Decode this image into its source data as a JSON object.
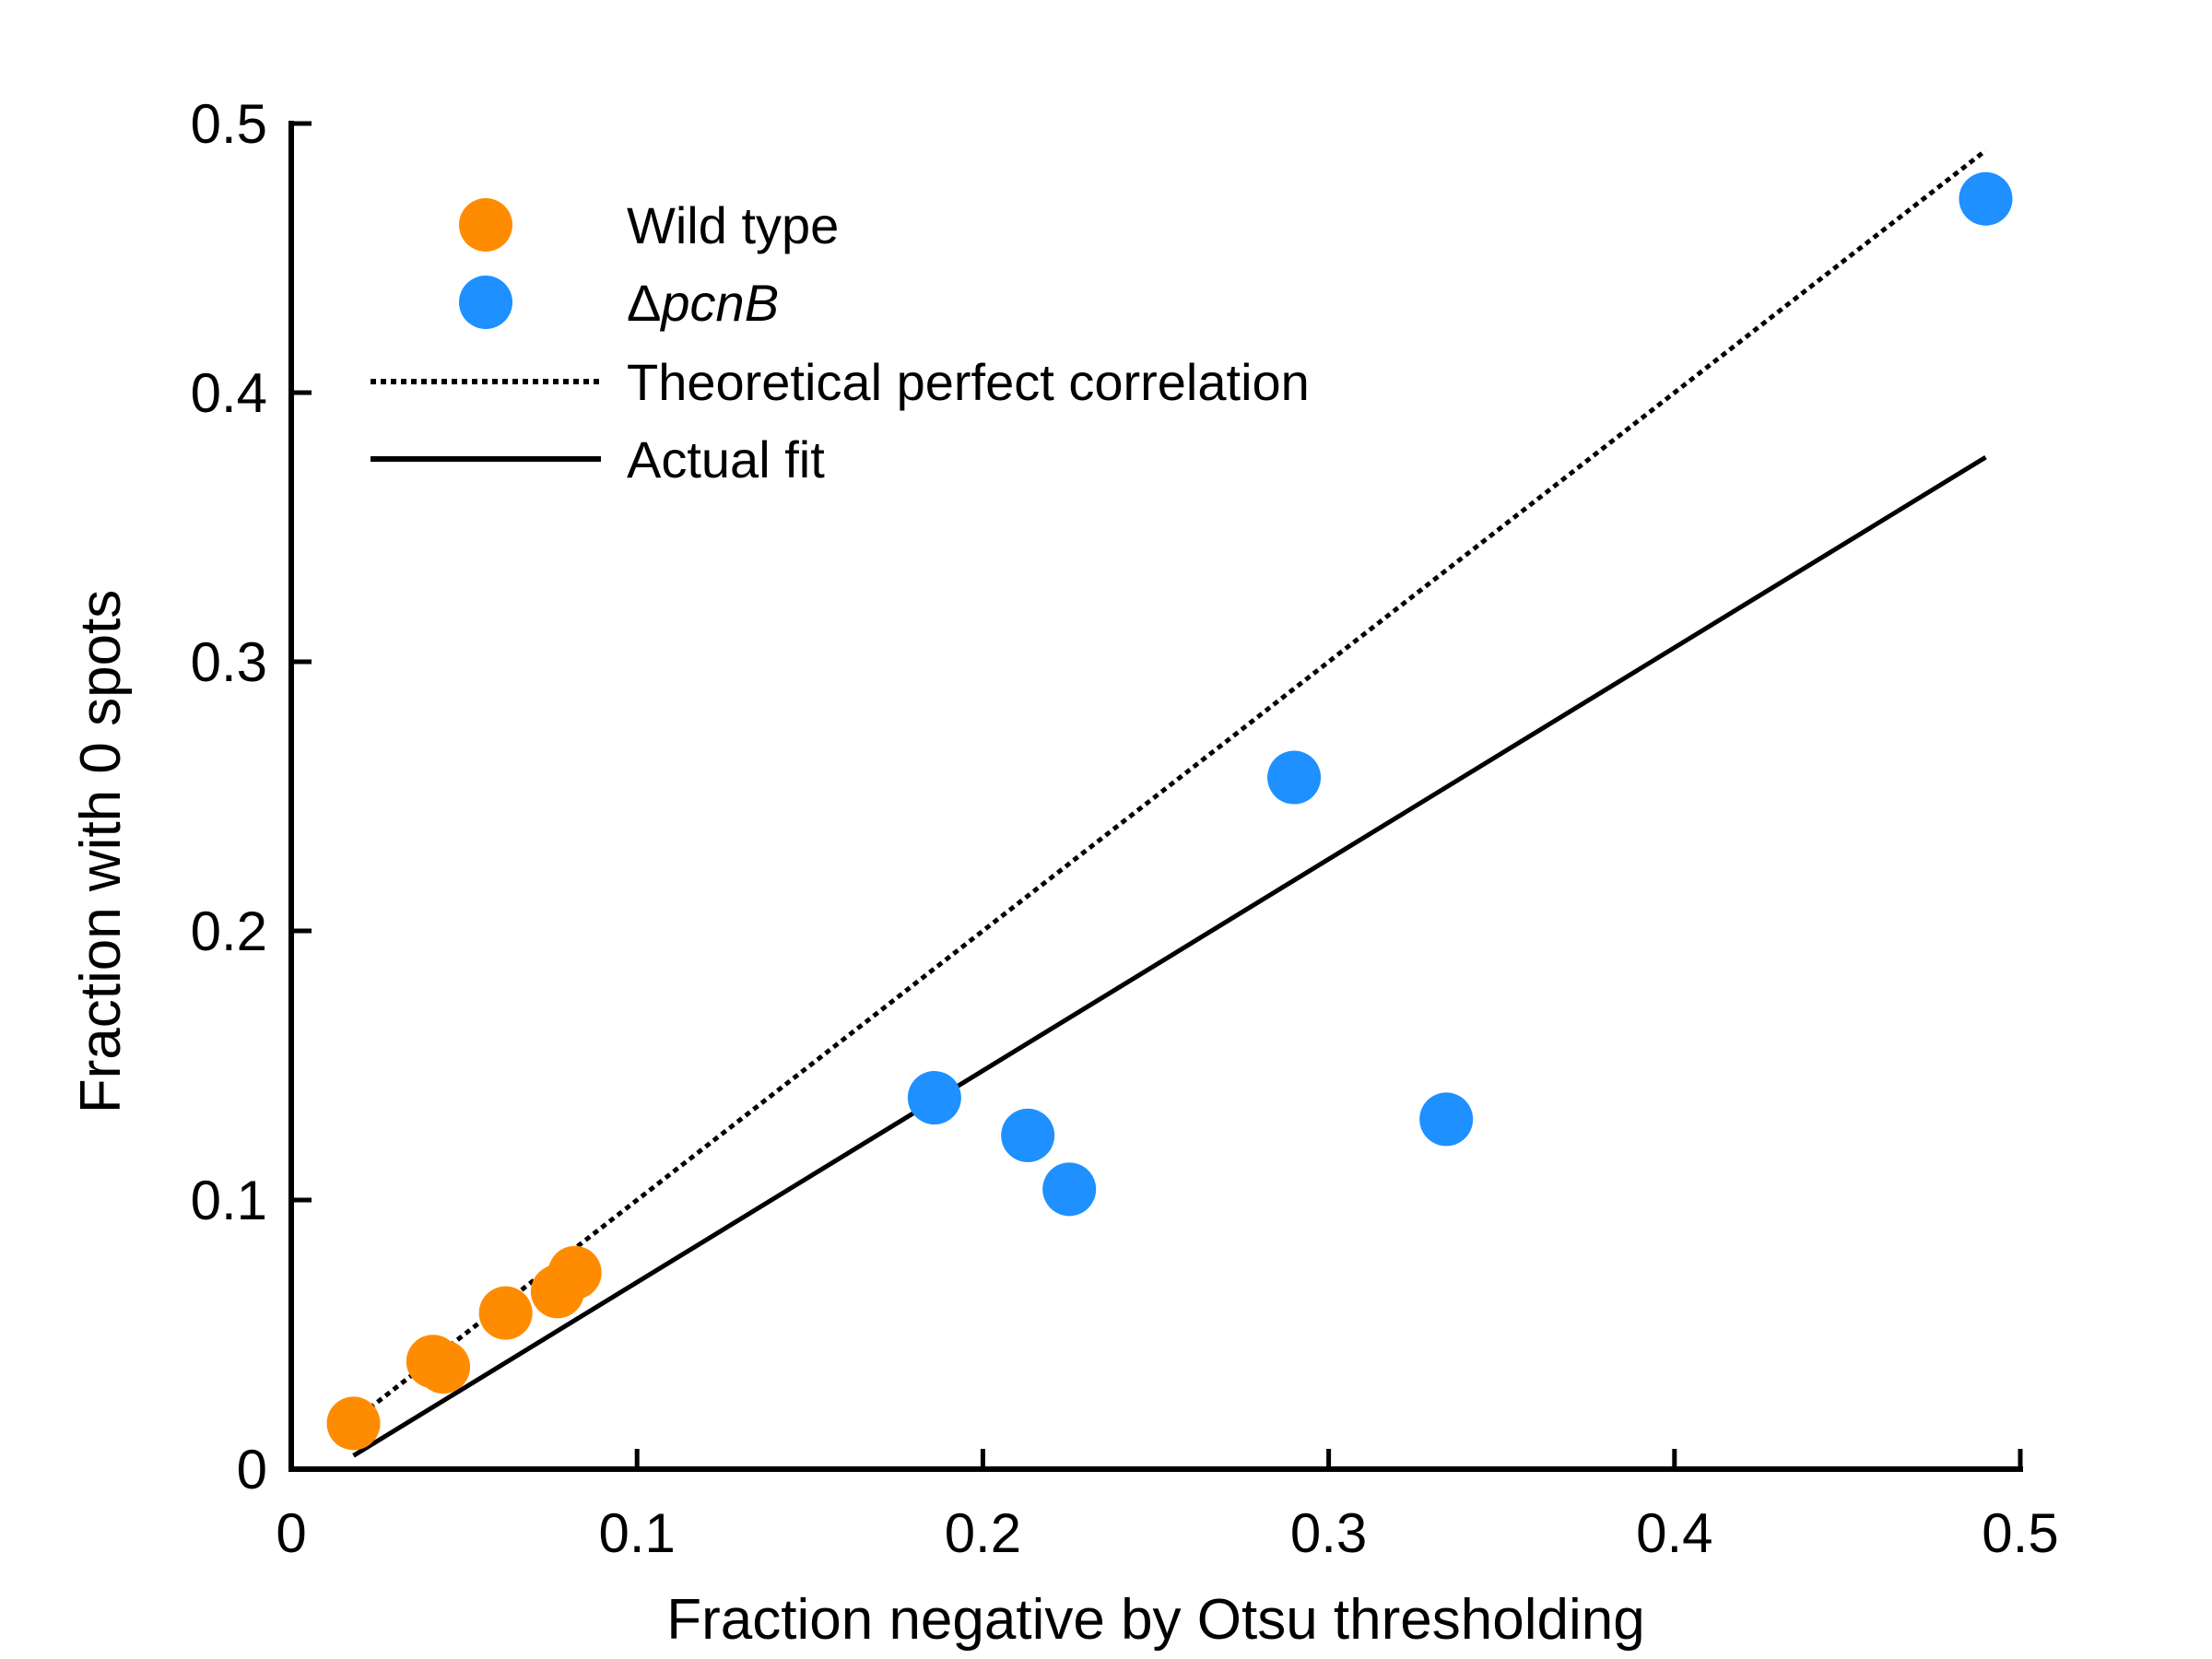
{
  "chart_data": {
    "type": "scatter",
    "title": "",
    "xlabel": "Fraction negative by Otsu thresholding",
    "ylabel": "Fraction with 0 spots",
    "xlim": [
      0,
      0.5
    ],
    "ylim": [
      0,
      0.5
    ],
    "xticks": [
      0,
      0.1,
      0.2,
      0.3,
      0.4,
      0.5
    ],
    "yticks": [
      0,
      0.1,
      0.2,
      0.3,
      0.4,
      0.5
    ],
    "xtick_labels": [
      "0",
      "0.1",
      "0.2",
      "0.3",
      "0.4",
      "0.5"
    ],
    "ytick_labels": [
      "0",
      "0.1",
      "0.2",
      "0.3",
      "0.4",
      "0.5"
    ],
    "grid": false,
    "legend_position": "top-left",
    "series": [
      {
        "name": "Wild type",
        "kind": "scatter",
        "color": "#FF8C00",
        "points": [
          {
            "x": 0.018,
            "y": 0.017
          },
          {
            "x": 0.041,
            "y": 0.04
          },
          {
            "x": 0.044,
            "y": 0.038
          },
          {
            "x": 0.062,
            "y": 0.058
          },
          {
            "x": 0.077,
            "y": 0.066
          },
          {
            "x": 0.082,
            "y": 0.073
          }
        ]
      },
      {
        "name": "ΔpcnB",
        "name_prefix": "Δ",
        "name_italic": "pcnB",
        "kind": "scatter",
        "color": "#1E90FF",
        "points": [
          {
            "x": 0.186,
            "y": 0.138
          },
          {
            "x": 0.213,
            "y": 0.124
          },
          {
            "x": 0.225,
            "y": 0.104
          },
          {
            "x": 0.29,
            "y": 0.257
          },
          {
            "x": 0.334,
            "y": 0.13
          },
          {
            "x": 0.49,
            "y": 0.472
          }
        ]
      },
      {
        "name": "Theoretical perfect correlation",
        "kind": "line",
        "style": "dotted",
        "color": "#000000",
        "points": [
          {
            "x": 0.018,
            "y": 0.018
          },
          {
            "x": 0.49,
            "y": 0.49
          }
        ]
      },
      {
        "name": "Actual fit",
        "kind": "line",
        "style": "solid",
        "color": "#000000",
        "points": [
          {
            "x": 0.018,
            "y": 0.005
          },
          {
            "x": 0.49,
            "y": 0.376
          }
        ]
      }
    ]
  }
}
